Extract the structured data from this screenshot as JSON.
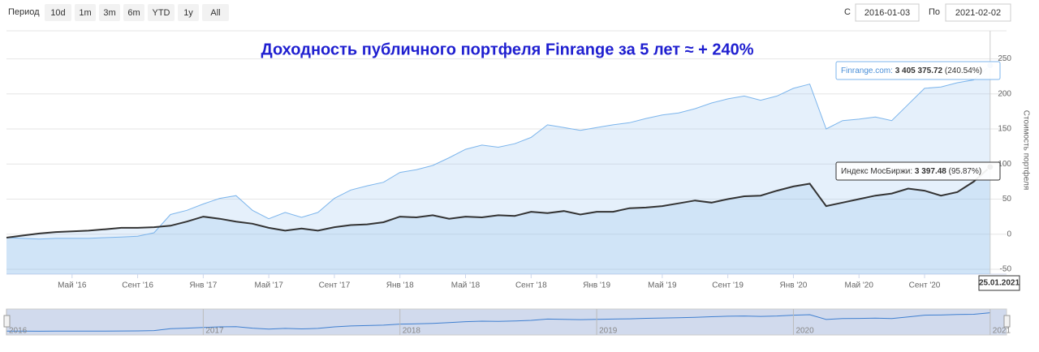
{
  "controls": {
    "period_label": "Период",
    "buttons": [
      "10d",
      "1m",
      "3m",
      "6m",
      "YTD",
      "1y",
      "All"
    ],
    "from_label": "С",
    "from_value": "2016-01-03",
    "to_label": "По",
    "to_value": "2021-02-02"
  },
  "chart_data": {
    "type": "line",
    "title": "Доходность публичного портфеля Finrange за 5 лет ≈ + 240%",
    "y_axis_title": "Стоимость портфеля",
    "crosshair_label": "25.01.2021",
    "x": [
      "2016-01",
      "2016-02",
      "2016-03",
      "2016-04",
      "2016-05",
      "2016-06",
      "2016-07",
      "2016-08",
      "2016-09",
      "2016-10",
      "2016-11",
      "2016-12",
      "2017-01",
      "2017-02",
      "2017-03",
      "2017-04",
      "2017-05",
      "2017-06",
      "2017-07",
      "2017-08",
      "2017-09",
      "2017-10",
      "2017-11",
      "2017-12",
      "2018-01",
      "2018-02",
      "2018-03",
      "2018-04",
      "2018-05",
      "2018-06",
      "2018-07",
      "2018-08",
      "2018-09",
      "2018-10",
      "2018-11",
      "2018-12",
      "2019-01",
      "2019-02",
      "2019-03",
      "2019-04",
      "2019-05",
      "2019-06",
      "2019-07",
      "2019-08",
      "2019-09",
      "2019-10",
      "2019-11",
      "2019-12",
      "2020-01",
      "2020-02",
      "2020-03",
      "2020-04",
      "2020-05",
      "2020-06",
      "2020-07",
      "2020-08",
      "2020-09",
      "2020-10",
      "2020-11",
      "2020-12",
      "2021-01"
    ],
    "xlim": [
      "2016-01",
      "2021-02"
    ],
    "xticks": [
      {
        "value": "2016-05",
        "label": "Май '16"
      },
      {
        "value": "2016-09",
        "label": "Сент '16"
      },
      {
        "value": "2017-01",
        "label": "Янв '17"
      },
      {
        "value": "2017-05",
        "label": "Май '17"
      },
      {
        "value": "2017-09",
        "label": "Сент '17"
      },
      {
        "value": "2018-01",
        "label": "Янв '18"
      },
      {
        "value": "2018-05",
        "label": "Май '18"
      },
      {
        "value": "2018-09",
        "label": "Сент '18"
      },
      {
        "value": "2019-01",
        "label": "Янв '19"
      },
      {
        "value": "2019-05",
        "label": "Май '19"
      },
      {
        "value": "2019-09",
        "label": "Сент '19"
      },
      {
        "value": "2020-01",
        "label": "Янв '20"
      },
      {
        "value": "2020-05",
        "label": "Май '20"
      },
      {
        "value": "2020-09",
        "label": "Сент '20"
      }
    ],
    "navigator_ticks": [
      {
        "value": "2016-01",
        "label": "2016"
      },
      {
        "value": "2017-01",
        "label": "2017"
      },
      {
        "value": "2018-01",
        "label": "2018"
      },
      {
        "value": "2019-01",
        "label": "2019"
      },
      {
        "value": "2020-01",
        "label": "2020"
      },
      {
        "value": "2021-01",
        "label": "2021"
      }
    ],
    "ylim": [
      -57,
      290
    ],
    "yticks": [
      -50,
      0,
      50,
      100,
      150,
      200,
      250
    ],
    "grid": true,
    "series": [
      {
        "color": "#7cb5ec",
        "tooltip": {
          "label": "Finrange.com:",
          "value": "3 405 375.72",
          "change": "(240.54%)"
        },
        "values": [
          -5,
          -6,
          -7,
          -6,
          -6,
          -6,
          -5,
          -4,
          -3,
          2,
          28,
          34,
          43,
          51,
          55,
          34,
          22,
          31,
          24,
          31,
          51,
          63,
          69,
          74,
          88,
          92,
          98,
          109,
          121,
          127,
          124,
          129,
          138,
          156,
          152,
          148,
          152,
          156,
          159,
          165,
          170,
          173,
          179,
          187,
          193,
          197,
          191,
          197,
          208,
          214,
          150,
          162,
          164,
          167,
          162,
          185,
          208,
          210,
          216,
          220,
          240.54
        ]
      },
      {
        "color": "#333333",
        "tooltip": {
          "label": "Индекс МосБиржи:",
          "value": "3 397.48",
          "change": "(95.87%)"
        },
        "values": [
          -5,
          -2,
          1,
          3,
          4,
          5,
          7,
          9,
          9,
          10,
          12,
          18,
          25,
          22,
          18,
          15,
          9,
          5,
          8,
          5,
          10,
          13,
          14,
          17,
          25,
          24,
          27,
          22,
          25,
          24,
          27,
          26,
          32,
          30,
          33,
          28,
          32,
          32,
          37,
          38,
          40,
          44,
          48,
          45,
          50,
          54,
          55,
          62,
          68,
          72,
          40,
          45,
          50,
          55,
          58,
          65,
          62,
          55,
          60,
          75,
          95.87
        ]
      }
    ]
  }
}
